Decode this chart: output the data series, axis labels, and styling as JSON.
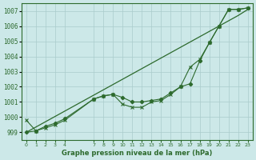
{
  "title": "Graphe pression niveau de la mer (hPa)",
  "bg_color": "#cce8e8",
  "grid_color": "#aacccc",
  "line_color": "#2d6a2d",
  "x_ticks": [
    0,
    1,
    2,
    3,
    4,
    7,
    8,
    9,
    10,
    11,
    12,
    13,
    14,
    15,
    16,
    17,
    18,
    19,
    20,
    21,
    22,
    23
  ],
  "ylim": [
    998.5,
    1007.5
  ],
  "yticks": [
    999,
    1000,
    1001,
    1002,
    1003,
    1004,
    1005,
    1006,
    1007
  ],
  "series_smooth": {
    "x": [
      0,
      1,
      2,
      3,
      4,
      7,
      8,
      9,
      10,
      11,
      12,
      13,
      14,
      15,
      16,
      17,
      18,
      19,
      20,
      21,
      22,
      23
    ],
    "y": [
      999.0,
      999.35,
      999.7,
      1000.05,
      1000.4,
      1001.45,
      1001.8,
      1002.15,
      1002.5,
      1002.85,
      1003.2,
      1003.55,
      1003.9,
      1004.25,
      1004.6,
      1004.95,
      1005.3,
      1005.65,
      1006.0,
      1006.35,
      1006.7,
      1007.1
    ]
  },
  "series_diamond": {
    "x": [
      0,
      1,
      2,
      3,
      4,
      7,
      8,
      9,
      10,
      11,
      12,
      13,
      14,
      15,
      16,
      17,
      18,
      19,
      20,
      21,
      22,
      23
    ],
    "y": [
      999.0,
      999.1,
      999.4,
      999.6,
      999.9,
      1001.2,
      1001.4,
      1001.5,
      1001.3,
      1001.0,
      1001.0,
      1001.1,
      1001.2,
      1001.6,
      1002.0,
      1002.2,
      1003.7,
      1004.9,
      1006.0,
      1007.1,
      1007.1,
      1007.2
    ]
  },
  "series_cross": {
    "x": [
      0,
      1,
      2,
      3,
      4,
      7,
      8,
      9,
      10,
      11,
      12,
      13,
      14,
      15,
      16,
      17,
      18,
      19,
      20,
      21,
      22,
      23
    ],
    "y": [
      999.8,
      999.1,
      999.3,
      999.5,
      999.8,
      1001.2,
      1001.4,
      1001.5,
      1000.85,
      1000.65,
      1000.65,
      1001.0,
      1001.1,
      1001.5,
      1002.0,
      1003.3,
      1003.8,
      1004.9,
      1006.0,
      1007.1,
      1007.1,
      1007.2
    ]
  }
}
